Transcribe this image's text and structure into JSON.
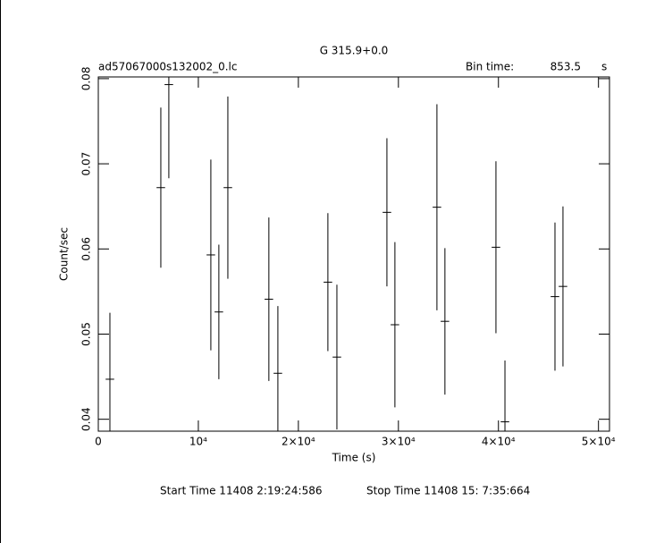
{
  "chart_data": {
    "type": "errorbar",
    "title": "G 315.9+0.0",
    "file_name": "ad57067000s132002_0.lc",
    "bin_time_label": "Bin time:",
    "bin_time": 853.5,
    "bin_time_unit": "s",
    "x_label": "Time (s)",
    "y_label": "Count/sec",
    "start_time": "Start Time 11408  2:19:24:586",
    "stop_time": "Stop Time 11408 15: 7:35:664",
    "color": "#000000",
    "x": [
      1160,
      6250,
      7050,
      11250,
      12050,
      12950,
      17050,
      17950,
      22950,
      23850,
      28850,
      29650,
      33850,
      34650,
      39750,
      40650,
      45650,
      46450
    ],
    "series": [
      {
        "values": [
          0.0447,
          0.0672,
          0.0793,
          0.0593,
          0.0526,
          0.0672,
          0.0541,
          0.0454,
          0.0561,
          0.0473,
          0.0643,
          0.0511,
          0.0649,
          0.0515,
          0.0602,
          0.0397,
          0.0544,
          0.0556
        ],
        "errors": [
          0.0078,
          0.0094,
          0.011,
          0.0112,
          0.0079,
          0.0107,
          0.0096,
          0.0079,
          0.0081,
          0.0085,
          0.0087,
          0.0097,
          0.0121,
          0.0086,
          0.0101,
          0.0072,
          0.0087,
          0.0094
        ]
      }
    ],
    "xlim": [
      0,
      51100
    ],
    "ylim": [
      0.0386,
      0.0802
    ],
    "xticks": [
      0,
      {
        "value": 10000,
        "label": "10⁴"
      },
      {
        "value": 20000,
        "label": "2×10⁴"
      },
      {
        "value": 30000,
        "label": "3×10⁴"
      },
      {
        "value": 40000,
        "label": "4×10⁴"
      },
      {
        "value": 50000,
        "label": "5×10⁴"
      }
    ],
    "yticks": [
      0.04,
      0.05,
      0.06,
      0.07,
      0.08
    ]
  }
}
